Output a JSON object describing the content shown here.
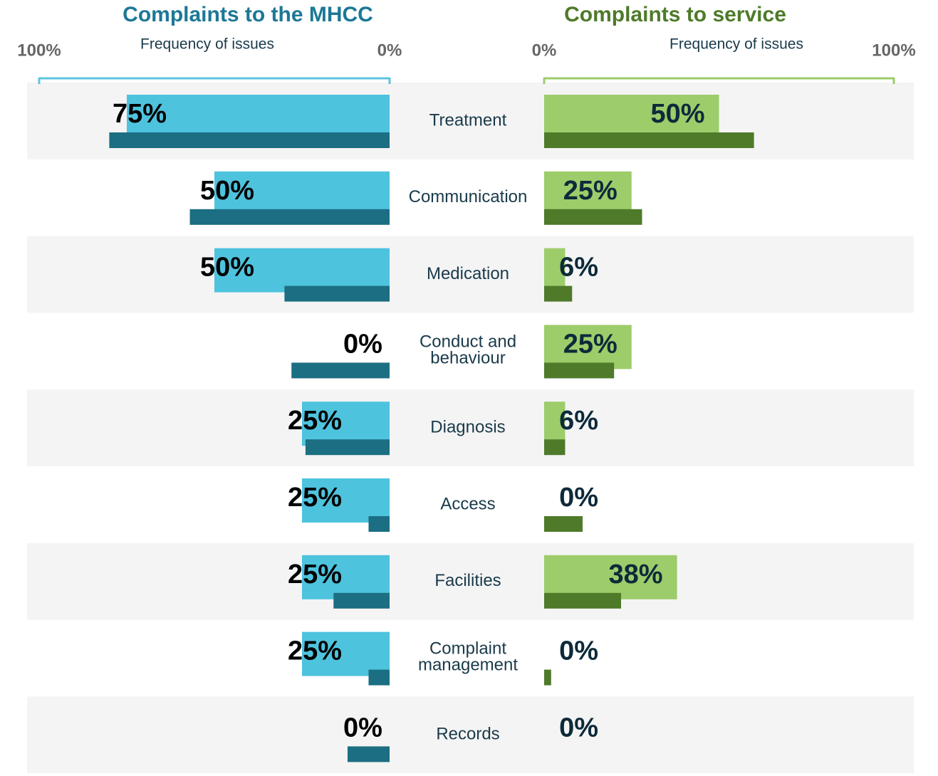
{
  "chart_data": [
    {
      "type": "bar",
      "orientation": "horizontal",
      "reversed": true,
      "title": "Complaints to the MHCC",
      "title_color": "#1c7896",
      "xlabel": "Frequency of issues",
      "categories": [
        "Treatment",
        "Communication",
        "Medication",
        "Conduct and behaviour",
        "Diagnosis",
        "Access",
        "Facilities",
        "Complaint management",
        "Records"
      ],
      "xlim": [
        0,
        100
      ],
      "xticks": [
        {
          "value": 100,
          "label": "100%"
        },
        {
          "value": 0,
          "label": "0%"
        }
      ],
      "axis_color": "#5bc4e0",
      "label_color": "#000000",
      "series": [
        {
          "color": "#4ec3de",
          "values": [
            75,
            50,
            50,
            0,
            25,
            25,
            25,
            25,
            0
          ],
          "value_labels": [
            "75%",
            "50%",
            "50%",
            "0%",
            "25%",
            "25%",
            "25%",
            "25%",
            "0%"
          ]
        },
        {
          "color": "#1c6e82",
          "values": [
            80,
            57,
            30,
            28,
            24,
            6,
            16,
            6,
            12
          ]
        }
      ]
    },
    {
      "type": "bar",
      "orientation": "horizontal",
      "reversed": false,
      "title": "Complaints to service",
      "title_color": "#4e7a2a",
      "xlabel": "Frequency of issues",
      "xlim": [
        0,
        100
      ],
      "xticks": [
        {
          "value": 0,
          "label": "0%"
        },
        {
          "value": 100,
          "label": "100%"
        }
      ],
      "axis_color": "#9dcc6a",
      "label_color": "#0d2a3a",
      "series": [
        {
          "color": "#9dcc6a",
          "values": [
            50,
            25,
            6,
            25,
            6,
            0,
            38,
            0,
            0
          ],
          "value_labels": [
            "50%",
            "25%",
            "6%",
            "25%",
            "6%",
            "0%",
            "38%",
            "0%",
            "0%"
          ]
        },
        {
          "color": "#4e7a2a",
          "values": [
            60,
            28,
            8,
            20,
            6,
            11,
            22,
            2,
            0
          ]
        }
      ]
    }
  ]
}
